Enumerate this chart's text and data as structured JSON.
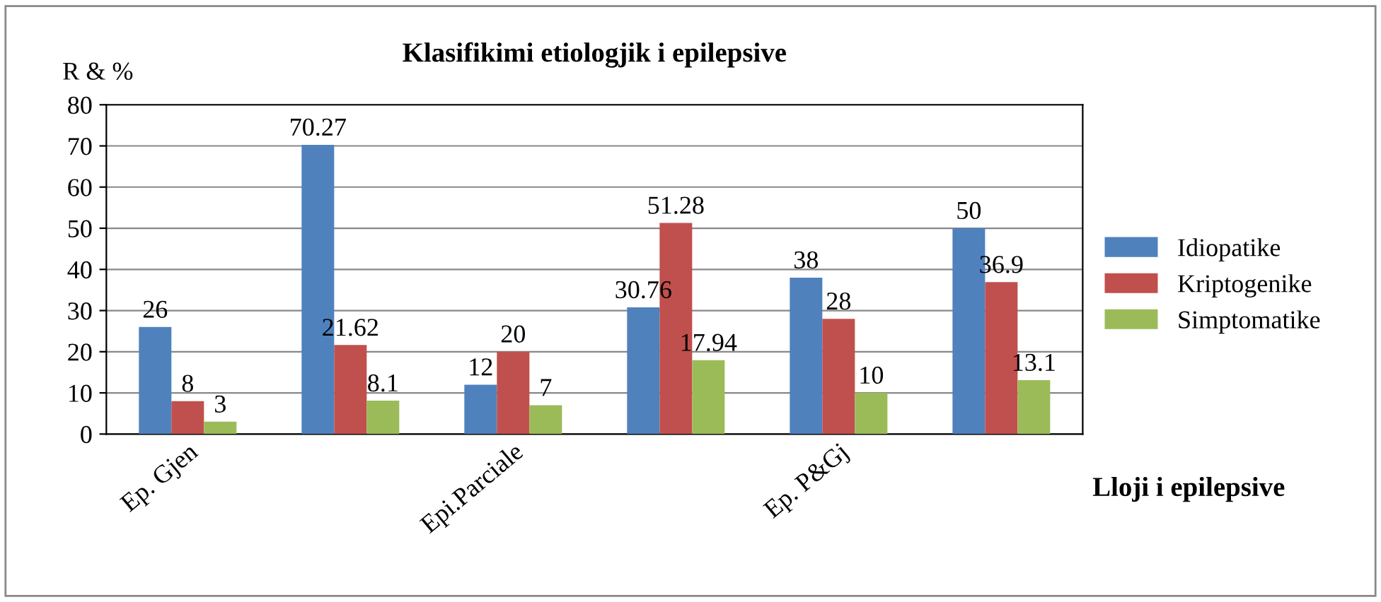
{
  "chart_data": {
    "type": "bar",
    "title": "Klasifikimi etiologjik i epilepsive",
    "xlabel": "Lloji i epilepsive",
    "ylabel": "R & %",
    "categories": [
      "Ep. Gjen",
      null,
      "Epi.Parciale",
      null,
      "Ep. P&Gj",
      null
    ],
    "series": [
      {
        "name": "Idiopatike",
        "color": "#4f81bd",
        "values": [
          26,
          70.27,
          12,
          30.76,
          38,
          50
        ]
      },
      {
        "name": "Kriptogenike",
        "color": "#c0504d",
        "values": [
          8,
          21.62,
          20,
          51.28,
          28,
          36.9
        ]
      },
      {
        "name": "Simptomatike",
        "color": "#9bbb59",
        "values": [
          3,
          8.1,
          7,
          17.94,
          10,
          13.1
        ]
      }
    ],
    "ylim": [
      0,
      80
    ],
    "yticks": [
      0,
      10,
      20,
      30,
      40,
      50,
      60,
      70,
      80
    ],
    "grid": "y",
    "legend": "right",
    "data_labels": true
  }
}
